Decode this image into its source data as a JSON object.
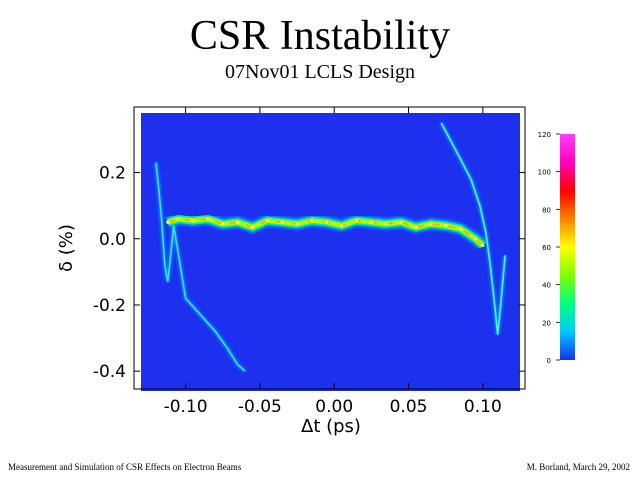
{
  "header": {
    "title": "CSR Instability",
    "subtitle": "07Nov01 LCLS Design"
  },
  "footer": {
    "left": "Measurement and Simulation of CSR Effects on Electron Beams",
    "right": "M. Borland, March 29, 2002"
  },
  "chart_data": {
    "type": "heatmap",
    "title": "CSR Instability",
    "subtitle": "07Nov01 LCLS Design",
    "xlabel": "Δt  (ps)",
    "ylabel": "δ  (%)",
    "xlim": [
      -0.13,
      0.125
    ],
    "ylim": [
      -0.46,
      0.38
    ],
    "x_ticks": [
      -0.1,
      -0.05,
      0.0,
      0.05,
      0.1
    ],
    "x_tick_labels": [
      "-0.10",
      "-0.05",
      "0.00",
      "0.05",
      "0.10"
    ],
    "y_ticks": [
      0.2,
      0.0,
      -0.2,
      -0.4
    ],
    "y_tick_labels": [
      "0.2",
      "0.0",
      "-0.2",
      "-0.4"
    ],
    "background_color": "#1c30ee",
    "colorbar": {
      "ticks": [
        0,
        20,
        40,
        60,
        80,
        100,
        120
      ],
      "tick_labels": [
        "0",
        "20",
        "40",
        "60",
        "80",
        "100",
        "120"
      ],
      "colors": [
        "#1830f0",
        "#00c8ff",
        "#00ff80",
        "#80ff00",
        "#ffff00",
        "#ff8000",
        "#ff0000",
        "#ff00c0",
        "#ff40ff"
      ]
    },
    "core_band": {
      "description": "dense central band",
      "x": [
        -0.112,
        -0.105,
        -0.095,
        -0.085,
        -0.075,
        -0.065,
        -0.055,
        -0.045,
        -0.035,
        -0.025,
        -0.015,
        -0.005,
        0.005,
        0.015,
        0.025,
        0.035,
        0.045,
        0.055,
        0.065,
        0.075,
        0.085,
        0.095,
        0.1
      ],
      "y": [
        0.05,
        0.06,
        0.055,
        0.06,
        0.045,
        0.05,
        0.035,
        0.055,
        0.05,
        0.045,
        0.055,
        0.05,
        0.04,
        0.055,
        0.05,
        0.045,
        0.05,
        0.035,
        0.045,
        0.04,
        0.03,
        0.0,
        -0.02
      ]
    },
    "head_tail": {
      "x": [
        0.072,
        0.078,
        0.085,
        0.092,
        0.098,
        0.102,
        0.105,
        0.108,
        0.11,
        0.112,
        0.115
      ],
      "y": [
        0.35,
        0.3,
        0.24,
        0.18,
        0.1,
        0.02,
        -0.08,
        -0.2,
        -0.29,
        -0.2,
        -0.05
      ]
    },
    "tail_left": {
      "x": [
        -0.12,
        -0.118,
        -0.116,
        -0.114,
        -0.112,
        -0.11,
        -0.108,
        -0.1,
        -0.09,
        -0.08,
        -0.072,
        -0.065,
        -0.06
      ],
      "y": [
        0.23,
        0.15,
        0.05,
        -0.08,
        -0.13,
        -0.05,
        0.04,
        -0.18,
        -0.23,
        -0.28,
        -0.33,
        -0.38,
        -0.4
      ]
    }
  }
}
